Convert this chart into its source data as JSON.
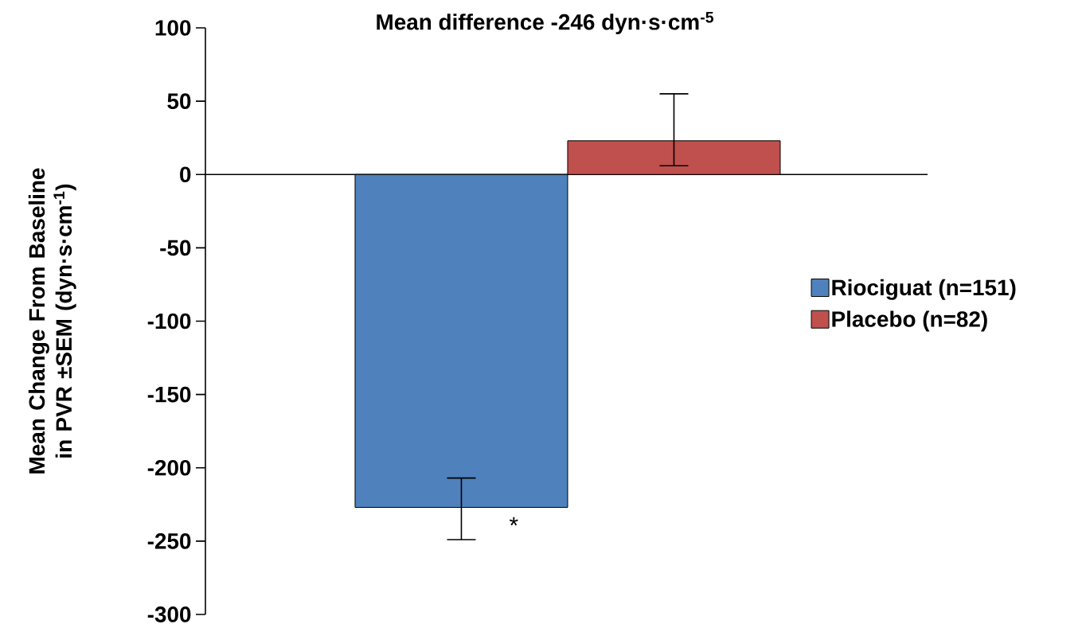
{
  "chart_data": {
    "type": "bar",
    "title": "Mean difference -246 dyn·s·cm$^{-5}$",
    "ylabel": "Mean Change From Baseline in PVR ±SEM (dyn·s·cm$^{-1}$)",
    "categories": [
      null,
      null
    ],
    "series": [
      {
        "name": "Riociguat (n=151)",
        "color": "#4f81bd",
        "values": [
          -227,
          null
        ],
        "errors": [
          [
            -249,
            -207
          ],
          null
        ]
      },
      {
        "name": "Placebo (n=82)",
        "color": "#c0504d",
        "values": [
          null,
          23
        ],
        "errors": [
          null,
          [
            6,
            55
          ]
        ]
      }
    ],
    "ylim": [
      -300,
      100
    ],
    "yticks": [
      -300,
      -250,
      -200,
      -150,
      -100,
      -50,
      0,
      50,
      100
    ],
    "legend": "right",
    "annotations": [
      "*"
    ]
  }
}
